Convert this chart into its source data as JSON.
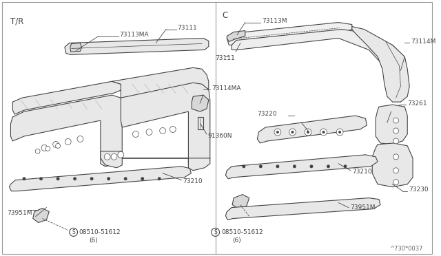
{
  "bg_color": "#ffffff",
  "line_color": "#444444",
  "text_color": "#444444",
  "fill_color": "#e8e8e8",
  "fill_color2": "#d8d8d8",
  "figsize": [
    6.4,
    3.72
  ],
  "dpi": 100,
  "title_left": "T/R",
  "title_right": "C",
  "diagram_note": "^730*0037"
}
